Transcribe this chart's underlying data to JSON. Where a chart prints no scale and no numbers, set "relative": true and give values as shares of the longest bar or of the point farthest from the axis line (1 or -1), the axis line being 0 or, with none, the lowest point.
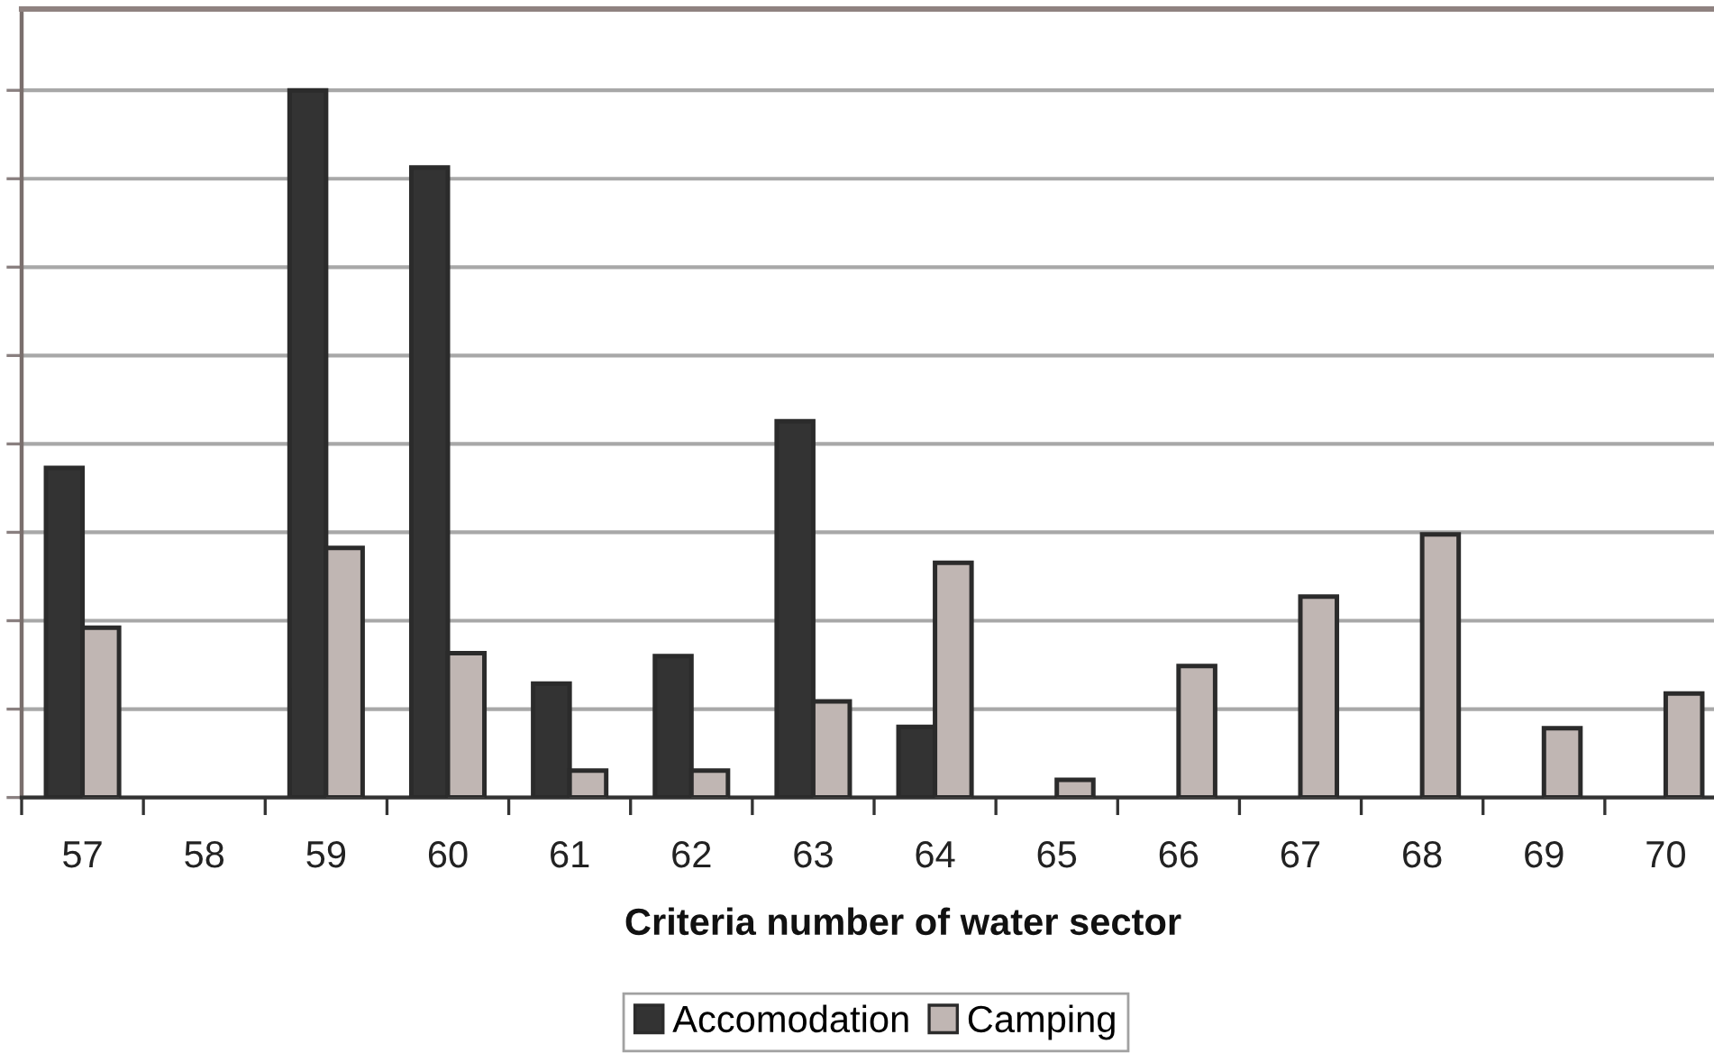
{
  "chart_data": {
    "type": "bar",
    "xlabel": "Criteria number of water sector",
    "categories": [
      "57",
      "58",
      "59",
      "60",
      "61",
      "62",
      "63",
      "64",
      "65",
      "66",
      "67",
      "68",
      "69",
      "70"
    ],
    "series": [
      {
        "name": "Accomodation",
        "color": "#333333",
        "values": [
          0.466,
          null,
          1,
          0.891,
          0.161,
          0.2,
          0.532,
          0.1,
          null,
          null,
          null,
          null,
          null,
          null
        ]
      },
      {
        "name": "Camping",
        "color": "#c0b6b3",
        "values": [
          0.24,
          null,
          0.353,
          0.204,
          0.038,
          0.038,
          0.136,
          0.332,
          0.025,
          0.186,
          0.284,
          0.372,
          0.098,
          0.147
        ]
      }
    ],
    "relative": true,
    "grid": "y",
    "legend": "bottom",
    "tick_labels": "x"
  }
}
